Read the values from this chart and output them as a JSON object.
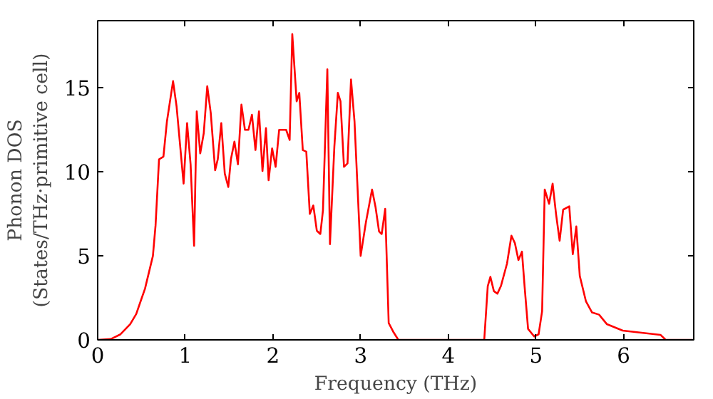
{
  "chart_data": {
    "type": "line",
    "xlabel": "Frequency (THz)",
    "ylabel": "Phonon DOS\n(States/THz·primitive cell)",
    "xlim": [
      0,
      6.8
    ],
    "ylim": [
      0,
      19
    ],
    "xticks": [
      0,
      1,
      2,
      3,
      4,
      5,
      6
    ],
    "yticks": [
      0,
      5,
      10,
      15
    ],
    "grid": false,
    "marker": "none",
    "line_style": "solid",
    "series": [
      {
        "color": "#ff0000",
        "x": [
          0,
          0.15,
          0.26,
          0.37,
          0.44,
          0.49,
          0.54,
          0.63,
          0.66,
          0.7,
          0.75,
          0.79,
          0.86,
          0.9,
          0.98,
          1.02,
          1.06,
          1.1,
          1.13,
          1.17,
          1.21,
          1.25,
          1.29,
          1.34,
          1.37,
          1.41,
          1.45,
          1.49,
          1.52,
          1.56,
          1.6,
          1.64,
          1.68,
          1.72,
          1.76,
          1.8,
          1.84,
          1.88,
          1.92,
          1.95,
          1.99,
          2.03,
          2.07,
          2.15,
          2.19,
          2.22,
          2.27,
          2.3,
          2.34,
          2.38,
          2.42,
          2.46,
          2.5,
          2.54,
          2.57,
          2.62,
          2.65,
          2.7,
          2.74,
          2.77,
          2.81,
          2.85,
          2.89,
          2.93,
          3.0,
          3.06,
          3.13,
          3.17,
          3.21,
          3.24,
          3.28,
          3.32,
          3.37,
          3.43,
          4.41,
          4.45,
          4.48,
          4.52,
          4.56,
          4.6,
          4.67,
          4.72,
          4.76,
          4.8,
          4.84,
          4.87,
          4.91,
          4.98,
          5.03,
          5.07,
          5.1,
          5.15,
          5.19,
          5.23,
          5.27,
          5.31,
          5.38,
          5.42,
          5.46,
          5.5,
          5.57,
          5.64,
          5.72,
          5.81,
          5.99,
          6.42,
          6.48,
          6.8
        ],
        "values": [
          0,
          0.05,
          0.33,
          0.93,
          1.54,
          2.3,
          3.05,
          5.0,
          6.8,
          10.75,
          10.9,
          13.0,
          15.4,
          13.9,
          9.3,
          12.9,
          10.45,
          5.6,
          13.6,
          11.1,
          12.3,
          15.1,
          13.5,
          10.1,
          10.75,
          12.9,
          9.9,
          9.1,
          10.75,
          11.8,
          10.45,
          14.0,
          12.5,
          12.5,
          13.4,
          11.3,
          13.6,
          10.05,
          12.6,
          9.5,
          11.4,
          10.3,
          12.5,
          12.5,
          11.9,
          18.2,
          14.2,
          14.7,
          11.3,
          11.2,
          7.5,
          8.0,
          6.5,
          6.3,
          7.7,
          16.1,
          5.7,
          11.5,
          14.7,
          14.2,
          10.3,
          10.5,
          15.5,
          13.0,
          5.0,
          7.0,
          8.95,
          7.9,
          6.45,
          6.3,
          7.8,
          1.0,
          0.5,
          0,
          0,
          3.2,
          3.75,
          2.9,
          2.75,
          3.2,
          4.55,
          6.2,
          5.75,
          4.75,
          5.25,
          3.2,
          0.65,
          0.2,
          0.33,
          1.7,
          8.95,
          8.1,
          9.3,
          7.45,
          5.9,
          7.75,
          7.95,
          5.1,
          6.75,
          3.8,
          2.3,
          1.63,
          1.5,
          0.93,
          0.55,
          0.3,
          0,
          0
        ]
      }
    ]
  }
}
